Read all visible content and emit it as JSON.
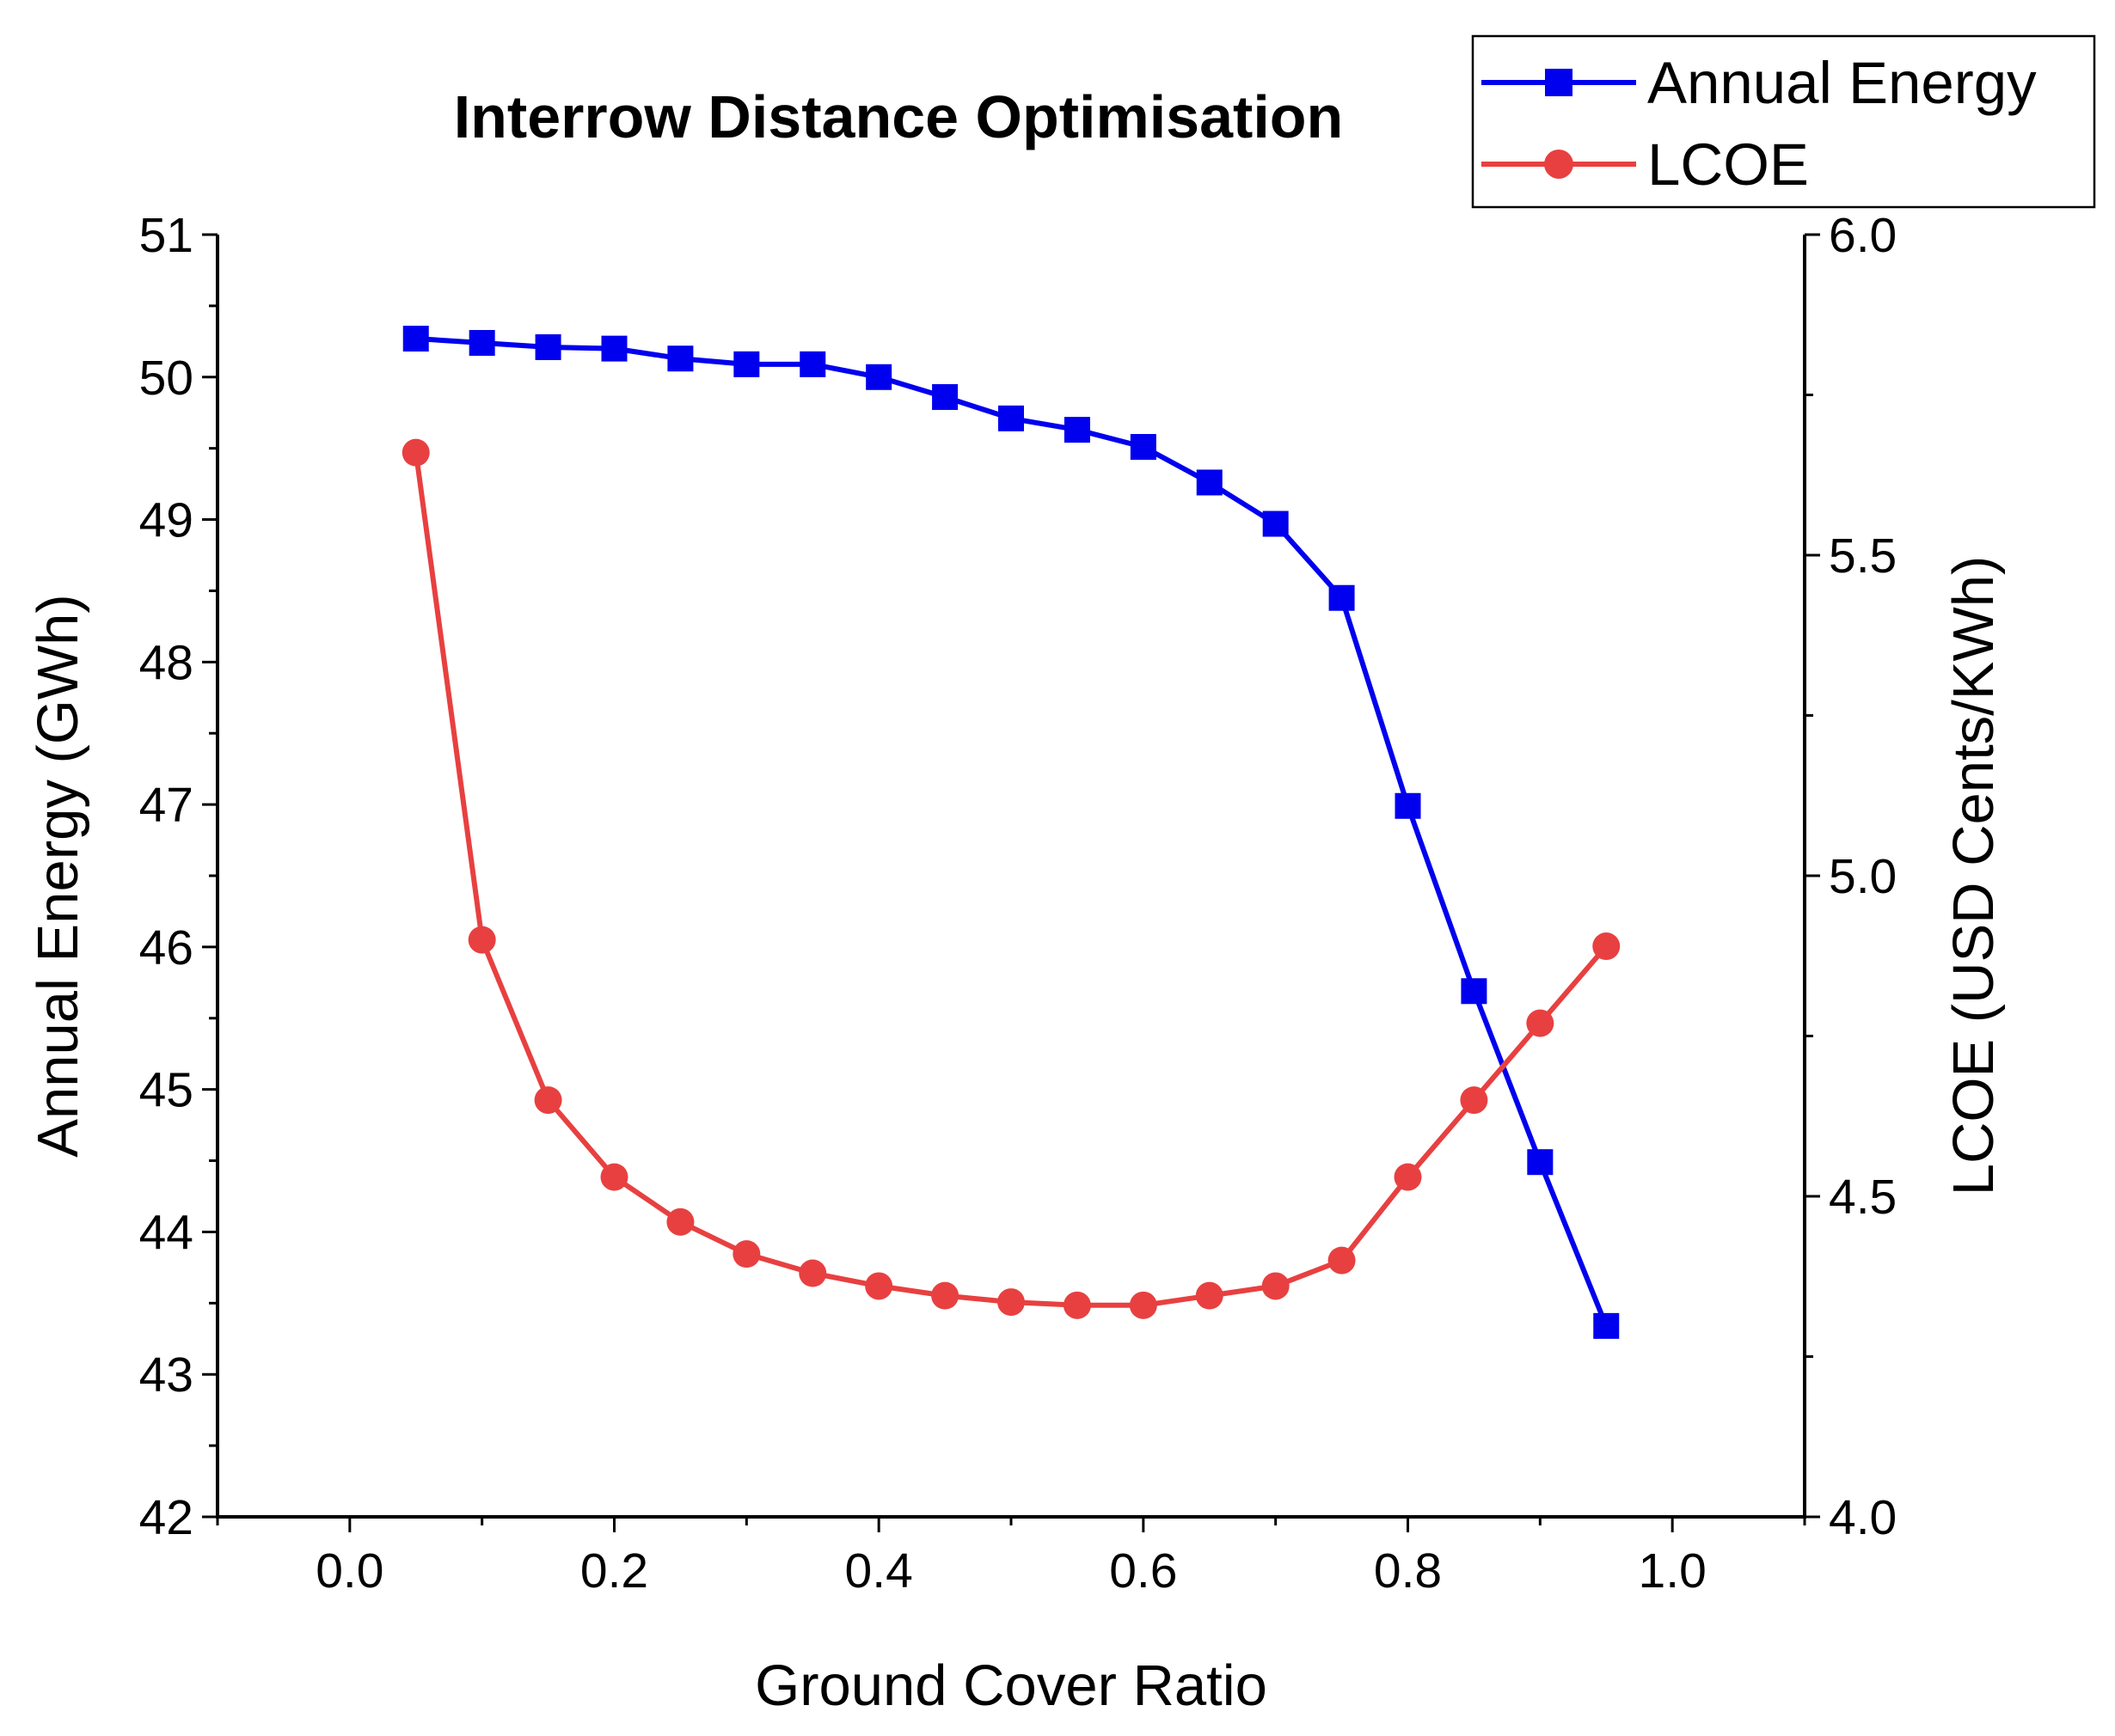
{
  "chart_data": {
    "type": "line",
    "title": "Interrow Distance Optimisation",
    "xlabel": "Ground Cover Ratio",
    "ylabel": "Annual Energy (GWh)",
    "y2label": "LCOE (USD Cents/KWh)",
    "xlim": [
      -0.1,
      1.1
    ],
    "ylim": [
      42,
      51
    ],
    "y2lim": [
      4.0,
      6.0
    ],
    "x_ticks": [
      "0.0",
      "0.2",
      "0.4",
      "0.6",
      "0.8",
      "1.0"
    ],
    "y_ticks": [
      "42",
      "43",
      "44",
      "45",
      "46",
      "47",
      "48",
      "49",
      "50",
      "51"
    ],
    "y2_ticks": [
      "4.0",
      "4.5",
      "5.0",
      "5.5",
      "6.0"
    ],
    "x": [
      0.05,
      0.1,
      0.15,
      0.2,
      0.25,
      0.3,
      0.35,
      0.4,
      0.45,
      0.5,
      0.55,
      0.6,
      0.65,
      0.7,
      0.75,
      0.8,
      0.85,
      0.9,
      0.95
    ],
    "series": [
      {
        "name": "Annual Energy",
        "axis": "left",
        "color": "#0000ee",
        "marker": "square",
        "values": [
          50.27,
          50.24,
          50.21,
          50.2,
          50.13,
          50.09,
          50.09,
          50.0,
          49.86,
          49.71,
          49.63,
          49.51,
          49.26,
          48.97,
          48.45,
          46.99,
          45.69,
          44.49,
          43.34
        ]
      },
      {
        "name": "LCOE",
        "axis": "right",
        "color": "#e84040",
        "marker": "circle",
        "values": [
          5.66,
          4.9,
          4.65,
          4.53,
          4.46,
          4.41,
          4.38,
          4.36,
          4.345,
          4.335,
          4.33,
          4.33,
          4.345,
          4.36,
          4.4,
          4.53,
          4.65,
          4.77,
          4.89
        ]
      }
    ],
    "legend": {
      "location": "top-right",
      "entries": [
        "Annual Energy",
        "LCOE"
      ]
    }
  }
}
